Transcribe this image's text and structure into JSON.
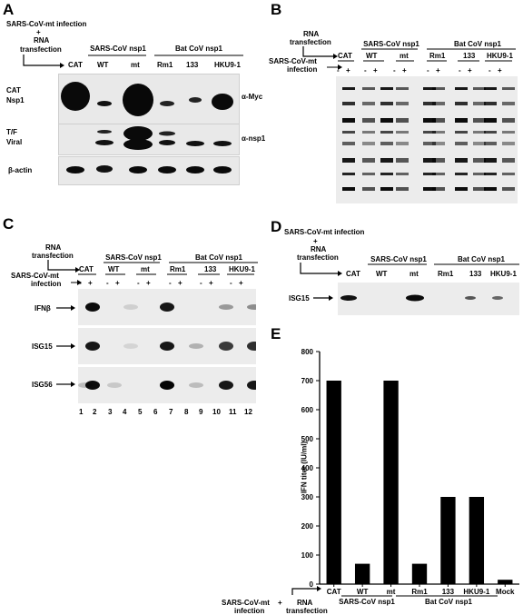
{
  "panels": {
    "A": {
      "letter": "A",
      "header_line1": "SARS-CoV-mt infection",
      "header_plus": "+",
      "header_line2": "RNA",
      "header_line3": "transfection",
      "group_sars": "SARS-CoV nsp1",
      "group_bat": "Bat CoV nsp1",
      "lanes": [
        "CAT",
        "WT",
        "mt",
        "Rm1",
        "133",
        "HKU9-1"
      ],
      "left_labels": {
        "cat": "CAT",
        "nsp1": "Nsp1",
        "tf": "T/F",
        "viral": "Viral",
        "actin": "β-actin"
      },
      "right_labels": {
        "myc": "α-Myc",
        "nsp1": "α-nsp1"
      }
    },
    "B": {
      "letter": "B",
      "header_line1": "RNA",
      "header_line2": "transfection",
      "header_line3": "SARS-CoV-mt",
      "header_line4": "infection",
      "group_sars": "SARS-CoV nsp1",
      "group_bat": "Bat CoV nsp1",
      "lanes": [
        "CAT",
        "WT",
        "mt",
        "Rm1",
        "133",
        "HKU9-1"
      ],
      "signs": [
        "-",
        "+",
        "-",
        "+",
        "-",
        "+",
        "-",
        "+",
        "-",
        "+",
        "-",
        "+"
      ]
    },
    "C": {
      "letter": "C",
      "header_line1": "RNA",
      "header_line2": "transfection",
      "header_line3": "SARS-CoV-mt",
      "header_line4": "infection",
      "group_sars": "SARS-CoV nsp1",
      "group_bat": "Bat CoV nsp1",
      "lanes": [
        "CAT",
        "WT",
        "mt",
        "Rm1",
        "133",
        "HKU9-1"
      ],
      "signs": [
        "-",
        "+",
        "-",
        "+",
        "-",
        "+",
        "-",
        "+",
        "-",
        "+",
        "-",
        "+"
      ],
      "rows": [
        "IFNβ",
        "ISG15",
        "ISG56"
      ],
      "lane_numbers": [
        "1",
        "2",
        "3",
        "4",
        "5",
        "6",
        "7",
        "8",
        "9",
        "10",
        "11",
        "12"
      ]
    },
    "D": {
      "letter": "D",
      "header_line1": "SARS-CoV-mt infection",
      "header_plus": "+",
      "header_line2": "RNA",
      "header_line3": "transfection",
      "group_sars": "SARS-CoV nsp1",
      "group_bat": "Bat CoV nsp1",
      "lanes": [
        "CAT",
        "WT",
        "mt",
        "Rm1",
        "133",
        "HKU9-1"
      ],
      "row_label": "ISG15"
    },
    "E": {
      "letter": "E",
      "footer_left1": "SARS-CoV-mt",
      "footer_left2": "infection",
      "footer_plus": "+",
      "footer_right1": "RNA",
      "footer_right2": "transfection",
      "group_sars": "SARS-CoV nsp1",
      "group_bat": "Bat CoV nsp1"
    }
  },
  "chart_data": {
    "type": "bar",
    "categories": [
      "CAT",
      "WT",
      "mt",
      "Rm1",
      "133",
      "HKU9-1",
      "Mock"
    ],
    "values": [
      700,
      70,
      700,
      70,
      300,
      300,
      15
    ],
    "ylabel": "IFN titer (IU/ml)",
    "ylim": [
      0,
      800
    ],
    "yticks": [
      "0",
      "100",
      "200",
      "300",
      "400",
      "500",
      "600",
      "700",
      "800"
    ],
    "bar_color": "#000000",
    "grid": false
  }
}
